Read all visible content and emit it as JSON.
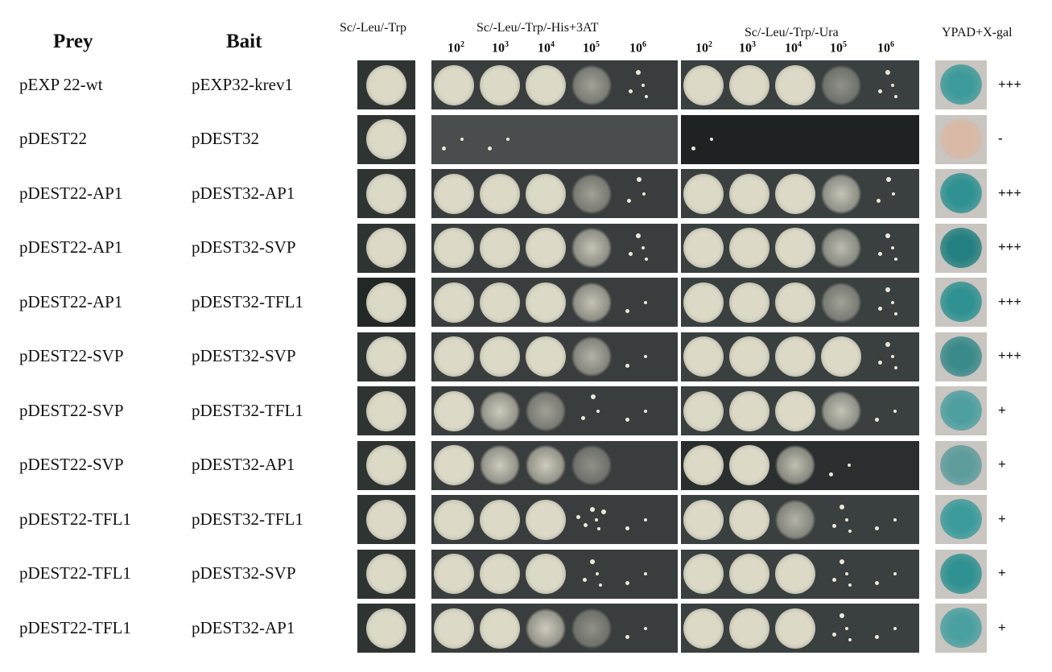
{
  "headers": {
    "prey": "Prey",
    "bait": "Bait",
    "col1": "Sc/-Leu/-Trp",
    "col2": "Sc/-Leu/-Trp/-His+3AT",
    "col3": "Sc/-Leu/-Trp/-Ura",
    "col4": "YPAD+X-gal"
  },
  "dilutions": [
    {
      "base": "10",
      "exp": "2"
    },
    {
      "base": "10",
      "exp": "3"
    },
    {
      "base": "10",
      "exp": "4"
    },
    {
      "base": "10",
      "exp": "5"
    },
    {
      "base": "10",
      "exp": "6"
    }
  ],
  "rows": [
    {
      "prey": "pEXP 22-wt",
      "bait": "pEXP32-krev1",
      "score": "+++",
      "his": [
        1,
        0.9,
        0.9,
        0.6,
        0.3
      ],
      "ura": [
        1,
        1,
        1,
        0.5,
        0.3
      ],
      "xgal": "#3d9a9a",
      "bg1": "#2f3433",
      "bg2": "#3a3d3e",
      "bg3": "#3a3f40"
    },
    {
      "prey": "pDEST22",
      "bait": "pDEST32",
      "score": "-",
      "his": [
        0.15,
        0.05,
        0,
        0,
        0
      ],
      "ura": [
        0.05,
        0,
        0,
        0,
        0
      ],
      "xgal": "#d9b9a6",
      "bg1": "#2f3433",
      "bg2": "#4a4d4d",
      "bg3": "#1e2223"
    },
    {
      "prey": "pDEST22-AP1",
      "bait": "pDEST32-AP1",
      "score": "+++",
      "his": [
        1,
        0.95,
        0.95,
        0.6,
        0.2
      ],
      "ura": [
        1,
        1,
        1,
        0.8,
        0.2
      ],
      "xgal": "#2f9191",
      "bg1": "#2f3433",
      "bg2": "#3a3d3e",
      "bg3": "#3a3f40"
    },
    {
      "prey": "pDEST22-AP1",
      "bait": "pDEST32-SVP",
      "score": "+++",
      "his": [
        1,
        0.95,
        0.95,
        0.8,
        0.3
      ],
      "ura": [
        1,
        1,
        0.9,
        0.75,
        0.3
      ],
      "xgal": "#237f80",
      "bg1": "#2f3433",
      "bg2": "#3a3d3e",
      "bg3": "#3a3f40"
    },
    {
      "prey": "pDEST22-AP1",
      "bait": "pDEST32-TFL1",
      "score": "+++",
      "his": [
        1,
        1,
        0.95,
        0.8,
        0.15
      ],
      "ura": [
        0.95,
        0.95,
        0.95,
        0.6,
        0.3
      ],
      "xgal": "#2f9191",
      "bg1": "#232726",
      "bg2": "#3a3d3e",
      "bg3": "#3a3f40"
    },
    {
      "prey": "pDEST22-SVP",
      "bait": "pDEST32-SVP",
      "score": "+++",
      "his": [
        1,
        0.9,
        0.9,
        0.7,
        0.15
      ],
      "ura": [
        1,
        1,
        1,
        0.9,
        0.3
      ],
      "xgal": "#3b8a8b",
      "bg1": "#2f3433",
      "bg2": "#3a3d3e",
      "bg3": "#3a3f40"
    },
    {
      "prey": "pDEST22-SVP",
      "bait": "pDEST32-TFL1",
      "score": "+",
      "his": [
        1,
        0.85,
        0.6,
        0.2,
        0.1
      ],
      "ura": [
        1,
        1,
        1,
        0.8,
        0.1
      ],
      "xgal": "#4e9fa0",
      "bg1": "#2f3433",
      "bg2": "#3a3d3e",
      "bg3": "#3a3f40"
    },
    {
      "prey": "pDEST22-SVP",
      "bait": "pDEST32-AP1",
      "score": "+",
      "his": [
        1,
        0.85,
        0.85,
        0.5,
        0
      ],
      "ura": [
        1,
        1,
        0.8,
        0.1,
        0
      ],
      "xgal": "#5e9c9c",
      "bg1": "#2f3433",
      "bg2": "#3a3d3e",
      "bg3": "#2a2e2f"
    },
    {
      "prey": "pDEST22-TFL1",
      "bait": "pDEST32-TFL1",
      "score": "+",
      "his": [
        1,
        0.95,
        0.95,
        0.4,
        0.1
      ],
      "ura": [
        1,
        1,
        0.7,
        0.3,
        0.1
      ],
      "xgal": "#3b9b9b",
      "bg1": "#2f3433",
      "bg2": "#3a3d3e",
      "bg3": "#3a3f40"
    },
    {
      "prey": "pDEST22-TFL1",
      "bait": "pDEST32-SVP",
      "score": "+",
      "his": [
        1,
        0.95,
        0.95,
        0.3,
        0.05
      ],
      "ura": [
        1,
        1,
        0.9,
        0.3,
        0.1
      ],
      "xgal": "#2f9191",
      "bg1": "#2f3433",
      "bg2": "#3a3d3e",
      "bg3": "#3a3f40"
    },
    {
      "prey": "pDEST22-TFL1",
      "bait": "pDEST32-AP1",
      "score": "+",
      "his": [
        1,
        0.9,
        0.85,
        0.5,
        0.05
      ],
      "ura": [
        1,
        1,
        1,
        0.3,
        0.1
      ],
      "xgal": "#4aa0a0",
      "bg1": "#2f3433",
      "bg2": "#3a3d3e",
      "bg3": "#3a3f40"
    }
  ]
}
